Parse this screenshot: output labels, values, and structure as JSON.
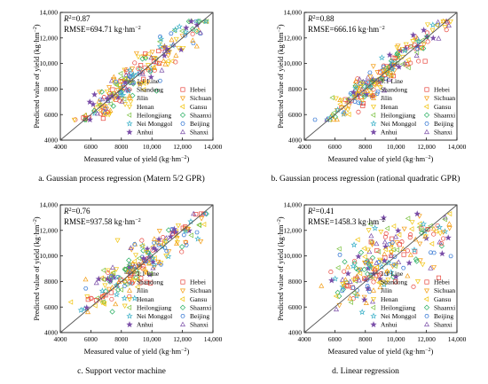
{
  "figure": {
    "marker_styles": {
      "Shandong": {
        "shape": "circle",
        "color": "#e8453c"
      },
      "Jilin": {
        "shape": "triangle-up",
        "color": "#f39c12"
      },
      "Henan": {
        "shape": "triangle-down",
        "color": "#f1c40f"
      },
      "Heilongjiang": {
        "shape": "triangle-left",
        "color": "#7cc242"
      },
      "Nei Monggol": {
        "shape": "star",
        "color": "#3ab0c8"
      },
      "Anhui": {
        "shape": "star-filled",
        "color": "#7a4ea8"
      },
      "Hebei": {
        "shape": "square",
        "color": "#e8453c"
      },
      "Sichuan": {
        "shape": "triangle-down",
        "color": "#f39c12"
      },
      "Gansu": {
        "shape": "triangle-left",
        "color": "#f1c40f"
      },
      "Shaanxi": {
        "shape": "diamond",
        "color": "#27ae60"
      },
      "Beijing": {
        "shape": "hexagon",
        "color": "#3a7bd5"
      },
      "Shanxi": {
        "shape": "triangle-up",
        "color": "#7a4ea8"
      }
    }
  },
  "chart_data": [
    {
      "type": "scatter",
      "panel": "a",
      "caption": "a. Gaussian process regression (Matern 5/2 GPR)",
      "r2_label": "R",
      "r2_value": "=0.87",
      "rmse_text": "RMSE=694.71 kg·hm",
      "xlabel": "Measured value of yield (kg·hm",
      "ylabel": "Predicted value of yield (kg·hm",
      "unit_exp": "−2",
      "xlim": [
        4000,
        14000
      ],
      "ylim": [
        4000,
        14000
      ],
      "xticks": [
        "4000",
        "6000",
        "8000",
        "10,000",
        "12,000",
        "14,000"
      ],
      "yticks": [
        "4000",
        "6000",
        "8000",
        "10,000",
        "12,000",
        "14,000"
      ],
      "line_label": "1:1 Line",
      "spread": 700,
      "bias": 0.0,
      "legend_left": [
        "Shandong",
        "Jilin",
        "Henan",
        "Heilongjiang",
        "Nei Monggol",
        "Anhui"
      ],
      "legend_right": [
        "Hebei",
        "Sichuan",
        "Gansu",
        "Shaanxi",
        "Beijing",
        "Shanxi"
      ]
    },
    {
      "type": "scatter",
      "panel": "b",
      "caption": "b. Gaussian process regression (rational quadratic GPR)",
      "r2_label": "R",
      "r2_value": "=0.88",
      "rmse_text": "RMSE=666.16 kg·hm",
      "xlabel": "Measured value of yield (kg·hm",
      "ylabel": "Predicted value of yield (kg·hm",
      "unit_exp": "−2",
      "xlim": [
        4000,
        14000
      ],
      "ylim": [
        4000,
        14000
      ],
      "xticks": [
        "4000",
        "6000",
        "8000",
        "10,000",
        "12,000",
        "14,000"
      ],
      "yticks": [
        "4000",
        "6000",
        "8000",
        "10,000",
        "12,000",
        "14,000"
      ],
      "line_label": "1:1 Line",
      "spread": 670,
      "bias": 0.0,
      "legend_left": [
        "Shandong",
        "Jilin",
        "Henan",
        "Heilongjiang",
        "Nei Monggol",
        "Anhui"
      ],
      "legend_right": [
        "Hebei",
        "Sichuan",
        "Gansu",
        "Shaanxi",
        "Beijing",
        "Shanxi"
      ]
    },
    {
      "type": "scatter",
      "panel": "c",
      "caption": "c. Support vector machine",
      "r2_label": "R",
      "r2_value": "=0.76",
      "rmse_text": "RMSE=937.58 kg·hm",
      "xlabel": "Measured value of yield (kg·hm",
      "ylabel": "Predicted value of yield (kg·hm",
      "unit_exp": "−2",
      "xlim": [
        4000,
        14000
      ],
      "ylim": [
        4000,
        14000
      ],
      "xticks": [
        "4000",
        "6000",
        "8000",
        "10,000",
        "12,000",
        "14,000"
      ],
      "yticks": [
        "4000",
        "6000",
        "8000",
        "10,000",
        "12,000",
        "14,000"
      ],
      "line_label": "1:1 Line",
      "spread": 900,
      "bias": 0.15,
      "legend_left": [
        "Shandong",
        "Jilin",
        "Henan",
        "Heilongjiang",
        "Nei Monggol",
        "Anhui"
      ],
      "legend_right": [
        "Hebei",
        "Sichuan",
        "Gansu",
        "Shaanxi",
        "Beijing",
        "Shanxi"
      ]
    },
    {
      "type": "scatter",
      "panel": "d",
      "caption": "d. Linear regression",
      "r2_label": "R",
      "r2_value": "=0.41",
      "rmse_text": "RMSE=1458.3 kg·hm",
      "xlabel": "Measured value of yield (kg·hm",
      "ylabel": "Predicted value of yield (kg·hm",
      "unit_exp": "−2",
      "xlim": [
        4000,
        14000
      ],
      "ylim": [
        4000,
        14000
      ],
      "xticks": [
        "4000",
        "6000",
        "8000",
        "10,000",
        "12,000",
        "14,000"
      ],
      "yticks": [
        "4000",
        "6000",
        "8000",
        "10,000",
        "12,000",
        "14,000"
      ],
      "line_label": "1:1 Line",
      "spread": 1400,
      "bias": 0.45,
      "legend_left": [
        "Shandong",
        "Jilin",
        "Henan",
        "Heilongjiang",
        "Nei Monggol",
        "Anhui"
      ],
      "legend_right": [
        "Hebei",
        "Sichuan",
        "Gansu",
        "Shaanxi",
        "Beijing",
        "Shanxi"
      ]
    }
  ]
}
